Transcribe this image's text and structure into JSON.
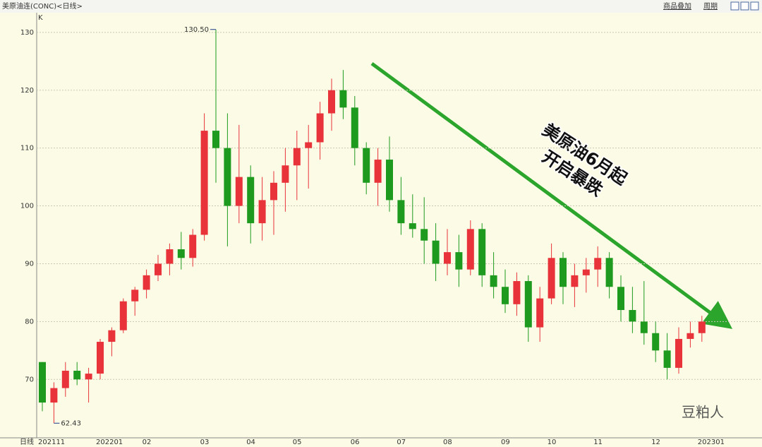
{
  "chart_data": {
    "type": "candlestick",
    "title": "美原油连(CONC)<日线>",
    "toolbar": [
      "商品叠加",
      "周期"
    ],
    "panel_label": "K",
    "period_label": "日线",
    "annotation": [
      "美原油6月起",
      "开启暴跌"
    ],
    "watermark": "豆粕人",
    "high_label": "130.50",
    "low_label": "62.43",
    "up_color": "#e8333a",
    "down_color": "#1e9a1e",
    "categories": [
      "202111",
      null,
      null,
      null,
      null,
      "202201",
      null,
      null,
      null,
      "02",
      null,
      null,
      null,
      null,
      "03",
      null,
      null,
      null,
      "04",
      null,
      null,
      null,
      "05",
      null,
      null,
      null,
      null,
      "06",
      null,
      null,
      null,
      "07",
      null,
      null,
      null,
      "08",
      null,
      null,
      null,
      null,
      "09",
      null,
      null,
      null,
      "10",
      null,
      null,
      null,
      "11",
      null,
      null,
      null,
      null,
      "12",
      null,
      null,
      null,
      "202301"
    ],
    "open": [
      73,
      66,
      68.5,
      71.5,
      70,
      71,
      76.5,
      78.5,
      83.5,
      85.5,
      88,
      90,
      92.5,
      91,
      95,
      113,
      110,
      100,
      105,
      97,
      101,
      104,
      107,
      110,
      111,
      116,
      120,
      117,
      110,
      104,
      108,
      101,
      97,
      96,
      94,
      90,
      92,
      89,
      96,
      88,
      86,
      83,
      87,
      79,
      84,
      91,
      86,
      88,
      89,
      91,
      86,
      82,
      80,
      78,
      75,
      72,
      77,
      78
    ],
    "high": [
      73,
      69.5,
      73,
      73,
      72,
      77,
      79,
      84,
      86,
      89,
      91.5,
      93.5,
      95.5,
      96,
      116,
      130.5,
      116,
      114,
      107,
      105,
      106,
      110,
      113,
      114,
      118,
      122,
      123.5,
      119,
      111,
      110,
      112,
      105,
      102,
      101.5,
      97,
      96,
      95,
      97.5,
      97,
      92,
      89,
      88.5,
      88,
      86,
      93.5,
      92,
      90,
      91,
      93,
      92,
      88,
      86,
      87,
      80,
      78,
      79,
      80,
      81
    ],
    "low": [
      64.5,
      62.43,
      67,
      69,
      66,
      70,
      74,
      78,
      81,
      84,
      87,
      88,
      89,
      89.5,
      94,
      104,
      93,
      97,
      93.5,
      94,
      95,
      99,
      101,
      103,
      108,
      113,
      115,
      107,
      102,
      100,
      99,
      95,
      94.5,
      90,
      87,
      88,
      86,
      88,
      86,
      84,
      81.5,
      81,
      76.5,
      76.5,
      83,
      83,
      82.5,
      85,
      86,
      84,
      80,
      78,
      76,
      73,
      70,
      71,
      75.5,
      76.5
    ],
    "close": [
      66,
      68.5,
      71.5,
      70,
      71,
      76.5,
      78.5,
      83.5,
      85.5,
      88,
      90,
      92.5,
      91,
      95,
      113,
      110,
      100,
      105,
      97,
      101,
      104,
      107,
      110,
      111,
      116,
      120,
      117,
      110,
      104,
      108,
      101,
      97,
      96,
      94,
      90,
      92,
      89,
      96,
      88,
      86,
      83,
      87,
      79,
      84,
      91,
      86,
      88,
      89,
      91,
      86,
      82,
      80,
      78,
      75,
      72,
      77,
      78,
      80
    ],
    "ylim": [
      59.9,
      133.4
    ],
    "yticks": [
      70,
      80,
      90,
      100,
      110,
      120,
      130
    ],
    "grid": true
  }
}
